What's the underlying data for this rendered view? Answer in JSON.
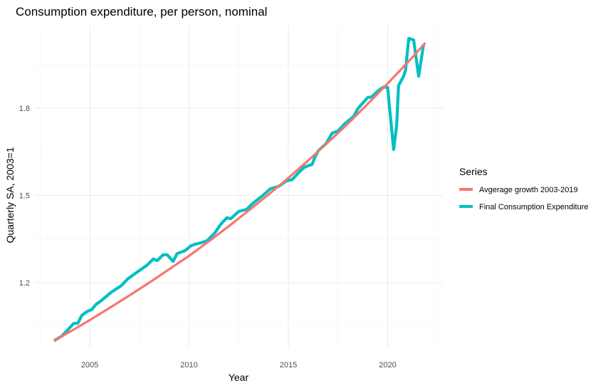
{
  "chart_data": {
    "type": "line",
    "title": "Consumption expenditure, per person, nominal",
    "xlabel": "Year",
    "ylabel": "Quarterly SA, 2003=1",
    "xlim": [
      2002.3,
      2023.0
    ],
    "ylim": [
      0.95,
      2.08
    ],
    "x_ticks": [
      2005,
      2010,
      2015,
      2020
    ],
    "x_tick_labels": [
      "2005",
      "2010",
      "2015",
      "2020"
    ],
    "x_minor_ticks": [
      2002.5,
      2007.5,
      2012.5,
      2017.5,
      2022.5
    ],
    "y_ticks": [
      1.2,
      1.5,
      1.8
    ],
    "y_tick_labels": [
      "1.2",
      "1.5",
      "1.8"
    ],
    "y_minor_ticks": [
      1.05,
      1.35,
      1.65,
      1.95
    ],
    "grid": true,
    "legend": {
      "title": "Series",
      "position": "right"
    },
    "series": [
      {
        "name": "Avgerage growth 2003-2019",
        "color": "#F8766D",
        "points": [
          [
            2003.2,
            1.0
          ],
          [
            2004.0,
            1.031
          ],
          [
            2005.0,
            1.071
          ],
          [
            2006.0,
            1.113
          ],
          [
            2007.0,
            1.156
          ],
          [
            2008.0,
            1.2
          ],
          [
            2009.0,
            1.246
          ],
          [
            2010.0,
            1.292
          ],
          [
            2011.0,
            1.342
          ],
          [
            2012.0,
            1.394
          ],
          [
            2013.0,
            1.448
          ],
          [
            2014.0,
            1.503
          ],
          [
            2015.0,
            1.56
          ],
          [
            2016.0,
            1.62
          ],
          [
            2017.0,
            1.683
          ],
          [
            2018.0,
            1.747
          ],
          [
            2019.0,
            1.815
          ],
          [
            2020.0,
            1.885
          ],
          [
            2021.0,
            1.957
          ],
          [
            2021.9,
            2.025
          ]
        ]
      },
      {
        "name": "Final Consumption Expenditure",
        "color": "#00BFC4",
        "points": [
          [
            2003.2,
            1.0
          ],
          [
            2003.6,
            1.016
          ],
          [
            2003.9,
            1.038
          ],
          [
            2004.2,
            1.06
          ],
          [
            2004.4,
            1.06
          ],
          [
            2004.6,
            1.087
          ],
          [
            2004.9,
            1.102
          ],
          [
            2005.1,
            1.107
          ],
          [
            2005.3,
            1.124
          ],
          [
            2005.6,
            1.139
          ],
          [
            2006.1,
            1.168
          ],
          [
            2006.6,
            1.19
          ],
          [
            2006.9,
            1.212
          ],
          [
            2007.4,
            1.237
          ],
          [
            2007.7,
            1.251
          ],
          [
            2007.9,
            1.261
          ],
          [
            2008.2,
            1.281
          ],
          [
            2008.4,
            1.276
          ],
          [
            2008.7,
            1.296
          ],
          [
            2008.9,
            1.296
          ],
          [
            2009.2,
            1.273
          ],
          [
            2009.4,
            1.3
          ],
          [
            2009.8,
            1.31
          ],
          [
            2010.1,
            1.327
          ],
          [
            2010.3,
            1.332
          ],
          [
            2010.6,
            1.337
          ],
          [
            2010.9,
            1.344
          ],
          [
            2011.3,
            1.371
          ],
          [
            2011.6,
            1.401
          ],
          [
            2011.9,
            1.423
          ],
          [
            2012.1,
            1.42
          ],
          [
            2012.5,
            1.445
          ],
          [
            2012.9,
            1.452
          ],
          [
            2013.2,
            1.472
          ],
          [
            2013.7,
            1.499
          ],
          [
            2014.1,
            1.523
          ],
          [
            2014.5,
            1.531
          ],
          [
            2014.9,
            1.55
          ],
          [
            2015.2,
            1.555
          ],
          [
            2015.5,
            1.577
          ],
          [
            2015.8,
            1.597
          ],
          [
            2016.2,
            1.607
          ],
          [
            2016.3,
            1.626
          ],
          [
            2016.5,
            1.653
          ],
          [
            2016.9,
            1.678
          ],
          [
            2017.2,
            1.714
          ],
          [
            2017.5,
            1.722
          ],
          [
            2017.8,
            1.744
          ],
          [
            2018.1,
            1.761
          ],
          [
            2018.3,
            1.773
          ],
          [
            2018.5,
            1.798
          ],
          [
            2018.8,
            1.822
          ],
          [
            2019.0,
            1.837
          ],
          [
            2019.2,
            1.839
          ],
          [
            2019.5,
            1.859
          ],
          [
            2019.8,
            1.873
          ],
          [
            2020.0,
            1.871
          ],
          [
            2020.1,
            1.798
          ],
          [
            2020.3,
            1.658
          ],
          [
            2020.45,
            1.739
          ],
          [
            2020.55,
            1.878
          ],
          [
            2020.8,
            1.91
          ],
          [
            2020.9,
            1.93
          ],
          [
            2021.06,
            2.04
          ],
          [
            2021.31,
            2.035
          ],
          [
            2021.56,
            1.91
          ],
          [
            2021.81,
            2.02
          ]
        ]
      }
    ]
  }
}
